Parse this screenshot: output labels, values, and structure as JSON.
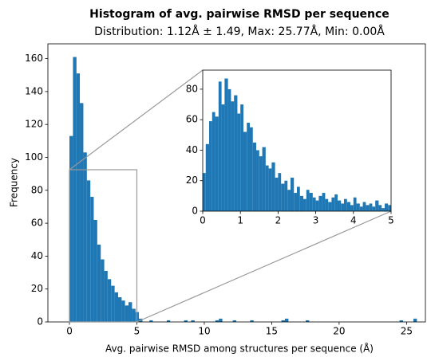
{
  "chart_data": [
    {
      "type": "histogram",
      "title": "Histogram of avg. pairwise RMSD per sequence",
      "subtitle": "Distribution: 1.12Å ± 1.49, Max: 25.77Å, Min: 0.00Å",
      "x_label": "Avg. pairwise RMSD among structures per sequence (Å)",
      "y_label": "Frequency",
      "color": "#1f77b4",
      "bins": [
        0,
        0.26,
        0.52,
        0.77,
        1.03,
        1.29,
        1.55,
        1.8,
        2.06,
        2.32,
        2.58,
        2.83,
        3.09,
        3.35,
        3.61,
        3.87,
        4.12,
        4.38,
        4.64,
        4.9,
        5.15,
        5.41,
        5.67,
        5.93,
        6.18,
        6.44,
        6.7,
        6.96,
        7.22,
        7.47,
        7.73,
        7.99,
        8.25,
        8.5,
        8.76,
        9.02,
        9.28,
        9.53,
        9.79,
        10.05,
        10.31,
        10.57,
        10.82,
        11.08,
        11.34,
        11.6,
        11.85,
        12.11,
        12.37,
        12.63,
        12.89,
        13.14,
        13.4,
        13.66,
        13.92,
        14.17,
        14.43,
        14.69,
        14.95,
        15.2,
        15.46,
        15.72,
        15.98,
        16.24,
        16.49,
        16.75,
        17.01,
        17.27,
        17.52,
        17.78,
        18.04,
        18.3,
        18.55,
        18.81,
        19.07,
        19.33,
        19.59,
        19.84,
        20.1,
        20.36,
        20.62,
        20.87,
        21.13,
        21.39,
        21.65,
        21.9,
        22.16,
        22.42,
        22.68,
        22.94,
        23.19,
        23.45,
        23.71,
        23.97,
        24.22,
        24.48,
        24.74,
        25,
        25.25,
        25.51,
        25.77
      ],
      "values": [
        113,
        161,
        151,
        133,
        103,
        86,
        76,
        62,
        47,
        38,
        31,
        26,
        22,
        18,
        15,
        13,
        10,
        12,
        8,
        6,
        2,
        0,
        0,
        1,
        0,
        0,
        0,
        0,
        1,
        0,
        0,
        0,
        0,
        1,
        0,
        1,
        0,
        0,
        0,
        0,
        0,
        0,
        1,
        2,
        0,
        0,
        0,
        1,
        0,
        0,
        0,
        0,
        1,
        0,
        0,
        0,
        0,
        0,
        0,
        0,
        0,
        1,
        2,
        0,
        0,
        0,
        0,
        0,
        1,
        0,
        0,
        0,
        0,
        0,
        0,
        0,
        0,
        0,
        0,
        0,
        0,
        0,
        0,
        0,
        0,
        0,
        0,
        0,
        0,
        0,
        0,
        0,
        0,
        0,
        0,
        1,
        0,
        0,
        0,
        2
      ],
      "xlim": [
        -1.6,
        26.4
      ],
      "ylim": [
        0,
        169
      ],
      "xticks": [
        0,
        5,
        10,
        15,
        20,
        25
      ],
      "yticks": [
        0,
        20,
        40,
        60,
        80,
        100,
        120,
        140,
        160
      ]
    },
    {
      "type": "histogram",
      "color": "#1f77b4",
      "bins": [
        0,
        0.08,
        0.17,
        0.25,
        0.33,
        0.42,
        0.5,
        0.58,
        0.67,
        0.75,
        0.83,
        0.92,
        1,
        1.08,
        1.17,
        1.25,
        1.33,
        1.42,
        1.5,
        1.58,
        1.67,
        1.75,
        1.83,
        1.92,
        2,
        2.08,
        2.17,
        2.25,
        2.33,
        2.42,
        2.5,
        2.58,
        2.67,
        2.75,
        2.83,
        2.92,
        3,
        3.08,
        3.17,
        3.25,
        3.33,
        3.42,
        3.5,
        3.58,
        3.67,
        3.75,
        3.83,
        3.92,
        4,
        4.08,
        4.17,
        4.25,
        4.33,
        4.42,
        4.5,
        4.58,
        4.67,
        4.75,
        4.83,
        4.92,
        5
      ],
      "values": [
        25,
        44,
        59,
        65,
        62,
        85,
        70,
        87,
        80,
        72,
        76,
        64,
        70,
        52,
        58,
        55,
        45,
        40,
        36,
        42,
        30,
        28,
        32,
        22,
        25,
        18,
        20,
        14,
        22,
        12,
        16,
        10,
        8,
        14,
        12,
        9,
        7,
        10,
        12,
        8,
        6,
        9,
        11,
        7,
        5,
        8,
        6,
        4,
        9,
        5,
        3,
        6,
        4,
        5,
        3,
        7,
        4,
        2,
        5,
        4
      ],
      "xlim": [
        0,
        5
      ],
      "ylim": [
        0,
        92.5
      ],
      "xticks": [
        0,
        1,
        2,
        3,
        4,
        5
      ],
      "yticks": [
        0,
        20,
        40,
        60,
        80
      ]
    }
  ]
}
